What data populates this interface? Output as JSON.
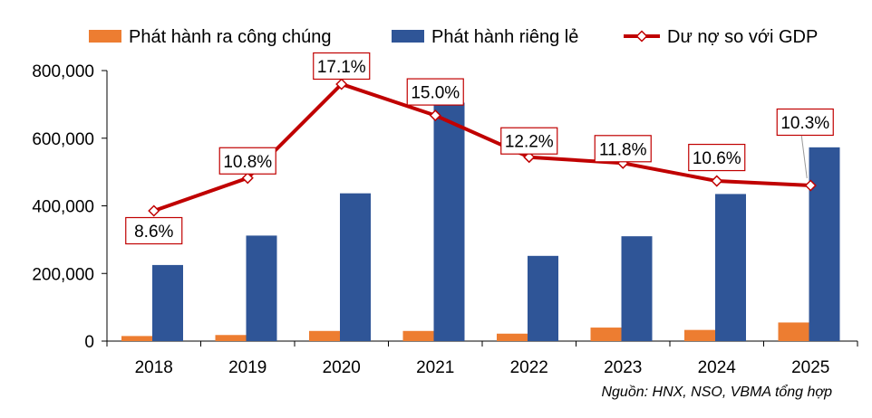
{
  "chart_data": {
    "type": "bar",
    "categories": [
      "2018",
      "2019",
      "2020",
      "2021",
      "2022",
      "2023",
      "2024",
      "2025"
    ],
    "series": [
      {
        "name": "Phát hành ra công chúng",
        "kind": "bar",
        "color": "#ED7D31",
        "values": [
          15000,
          18000,
          30000,
          30000,
          22000,
          40000,
          33000,
          55000
        ]
      },
      {
        "name": "Phát hành riêng lẻ",
        "kind": "bar",
        "color": "#2F5597",
        "values": [
          225000,
          312000,
          437000,
          705000,
          252000,
          310000,
          435000,
          573000
        ]
      },
      {
        "name": "Dư nợ so với GDP",
        "kind": "line",
        "color": "#C00000",
        "values": [
          8.6,
          10.8,
          17.1,
          15.0,
          12.2,
          11.8,
          10.6,
          10.3
        ],
        "labels": [
          "8.6%",
          "10.8%",
          "17.1%",
          "15.0%",
          "12.2%",
          "11.8%",
          "10.6%",
          "10.3%"
        ]
      }
    ],
    "yticks": [
      "0",
      "200,000",
      "400,000",
      "600,000",
      "800,000"
    ],
    "ylim": [
      0,
      800000
    ],
    "grid": false,
    "legend": "top",
    "source": "Nguồn: HNX, NSO, VBMA tổng hợp"
  }
}
